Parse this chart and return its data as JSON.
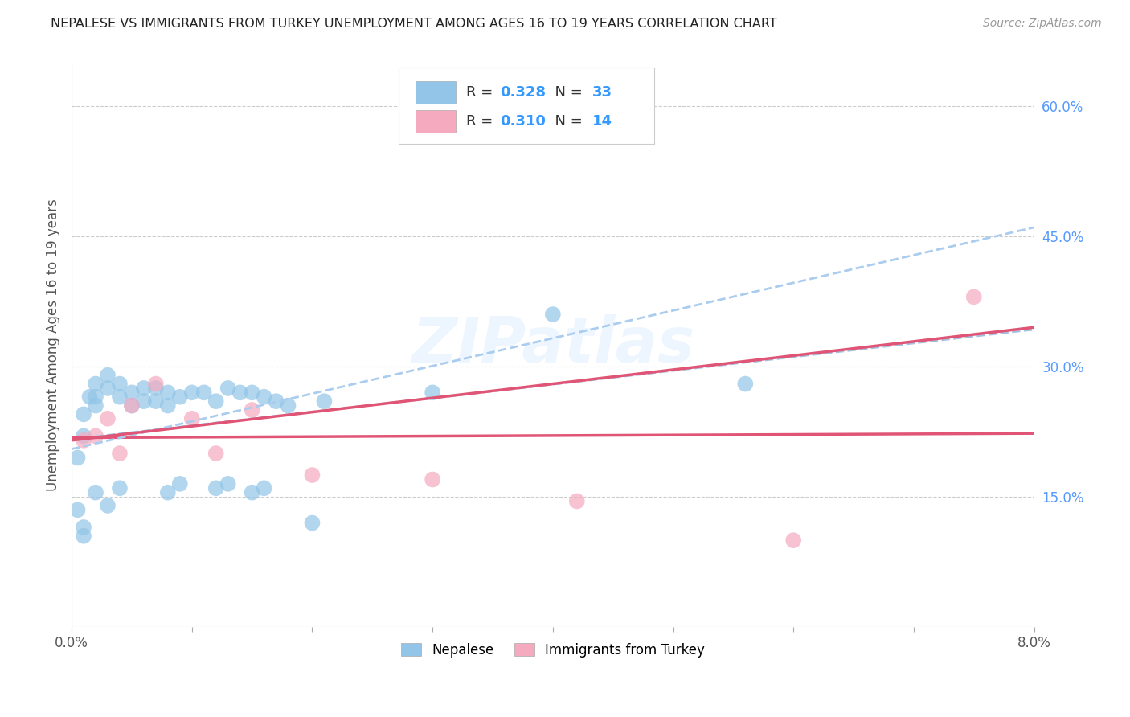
{
  "title": "NEPALESE VS IMMIGRANTS FROM TURKEY UNEMPLOYMENT AMONG AGES 16 TO 19 YEARS CORRELATION CHART",
  "source": "Source: ZipAtlas.com",
  "ylabel": "Unemployment Among Ages 16 to 19 years",
  "xlim": [
    0.0,
    0.08
  ],
  "ylim": [
    0.0,
    0.65
  ],
  "xticks": [
    0.0,
    0.01,
    0.02,
    0.03,
    0.04,
    0.05,
    0.06,
    0.07,
    0.08
  ],
  "xticklabels": [
    "0.0%",
    "",
    "",
    "",
    "",
    "",
    "",
    "",
    "8.0%"
  ],
  "yticks_right": [
    0.15,
    0.3,
    0.45,
    0.6
  ],
  "yticklabels_right": [
    "15.0%",
    "30.0%",
    "45.0%",
    "60.0%"
  ],
  "blue_r": 0.328,
  "blue_n": 33,
  "pink_r": 0.31,
  "pink_n": 14,
  "blue_color": "#92C5E8",
  "pink_color": "#F5AABF",
  "blue_line_color": "#3366CC",
  "blue_line_dash": "#99BBDD",
  "pink_line_color": "#E05575",
  "watermark": "ZIPatlas",
  "nepalese_x": [
    0.001,
    0.001,
    0.002,
    0.002,
    0.003,
    0.003,
    0.004,
    0.004,
    0.005,
    0.005,
    0.006,
    0.006,
    0.007,
    0.007,
    0.008,
    0.008,
    0.009,
    0.009,
    0.01,
    0.011,
    0.012,
    0.013,
    0.014,
    0.015,
    0.016,
    0.017,
    0.018,
    0.019,
    0.021,
    0.022,
    0.03,
    0.04,
    0.055
  ],
  "nepalese_y": [
    0.22,
    0.2,
    0.26,
    0.25,
    0.28,
    0.24,
    0.26,
    0.22,
    0.27,
    0.23,
    0.27,
    0.25,
    0.25,
    0.23,
    0.26,
    0.21,
    0.27,
    0.24,
    0.24,
    0.28,
    0.22,
    0.27,
    0.25,
    0.27,
    0.26,
    0.22,
    0.22,
    0.2,
    0.21,
    0.19,
    0.27,
    0.36,
    0.28
  ],
  "turkey_x": [
    0.002,
    0.003,
    0.004,
    0.005,
    0.006,
    0.007,
    0.008,
    0.01,
    0.012,
    0.015,
    0.02,
    0.03,
    0.06,
    0.075
  ],
  "turkey_y": [
    0.22,
    0.24,
    0.2,
    0.25,
    0.22,
    0.28,
    0.21,
    0.24,
    0.2,
    0.25,
    0.18,
    0.17,
    0.14,
    0.38
  ],
  "nepalese_x2": [
    0.001,
    0.001,
    0.002,
    0.004,
    0.01,
    0.013,
    0.014,
    0.015,
    0.016,
    0.017,
    0.019,
    0.02,
    0.021
  ],
  "nepalese_y2": [
    0.14,
    0.11,
    0.12,
    0.16,
    0.15,
    0.17,
    0.18,
    0.16,
    0.17,
    0.13,
    0.12,
    0.11,
    0.1
  ]
}
